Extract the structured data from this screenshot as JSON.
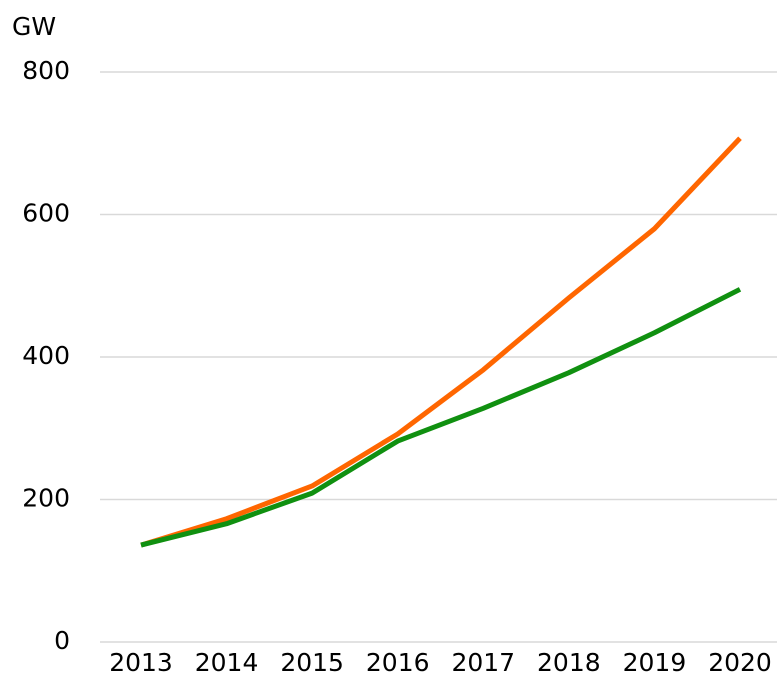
{
  "chart_data": {
    "type": "line",
    "y_label": "GW",
    "categories": [
      "2013",
      "2014",
      "2015",
      "2016",
      "2017",
      "2018",
      "2019",
      "2020"
    ],
    "series": [
      {
        "color": "#ff6600",
        "values": [
          136,
          173,
          219,
          292,
          382,
          483,
          580,
          707
        ]
      },
      {
        "color": "#109010",
        "values": [
          136,
          166,
          209,
          282,
          328,
          378,
          434,
          495
        ]
      }
    ],
    "ylim": [
      0,
      800
    ],
    "yticks": [
      0,
      200,
      400,
      600,
      800
    ],
    "grid": true
  }
}
